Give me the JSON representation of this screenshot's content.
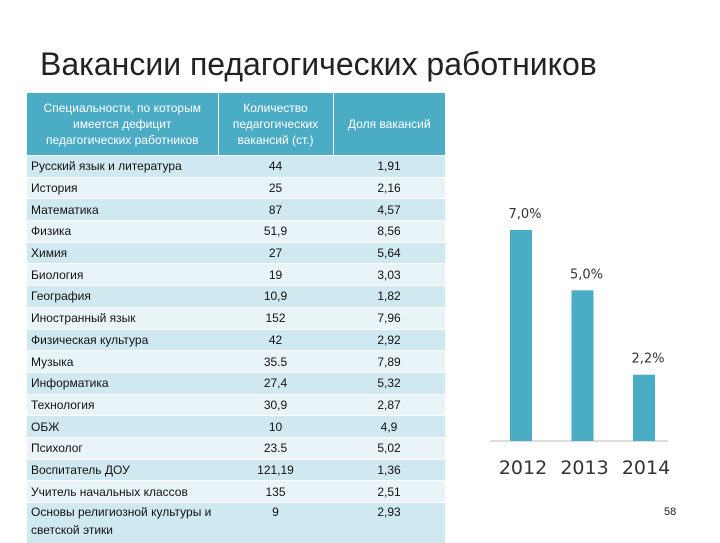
{
  "title": "Вакансии педагогических работников",
  "table": {
    "header": [
      "Специальности, по которым имеется дефицит педагогических работников",
      "Количество педагогических вакансий (ст.)",
      "Доля вакансий"
    ],
    "rows": [
      [
        "Русский язык и литература",
        "44",
        "1,91"
      ],
      [
        "История",
        "25",
        "2,16"
      ],
      [
        "Математика",
        "87",
        "4,57"
      ],
      [
        "Физика",
        "51,9",
        "8,56"
      ],
      [
        "Химия",
        "27",
        "5,64"
      ],
      [
        "Биология",
        "19",
        "3,03"
      ],
      [
        "География",
        "10,9",
        "1,82"
      ],
      [
        "Иностранный язык",
        "152",
        "7,96"
      ],
      [
        "Физическая культура",
        "42",
        "2,92"
      ],
      [
        "Музыка",
        "35.5",
        "7,89"
      ],
      [
        "Информатика",
        "27,4",
        "5,32"
      ],
      [
        "Технология",
        "30,9",
        "2,87"
      ],
      [
        "ОБЖ",
        "10",
        "4,9"
      ],
      [
        "Психолог",
        "23.5",
        "5,02"
      ],
      [
        "Воспитатель ДОУ",
        "121,19",
        "1,36"
      ],
      [
        "Учитель начальных классов",
        "135",
        "2,51"
      ],
      [
        "Основы религиозной культуры и светской этики",
        "9",
        "2,93"
      ]
    ]
  },
  "chart_data": {
    "type": "bar",
    "categories": [
      "2012",
      "2013",
      "2014"
    ],
    "values": [
      7.0,
      5.0,
      2.2
    ],
    "value_labels": [
      "7,0%",
      "5,0%",
      "2,2%"
    ],
    "color": "#4bacc6"
  },
  "page_number": "58"
}
